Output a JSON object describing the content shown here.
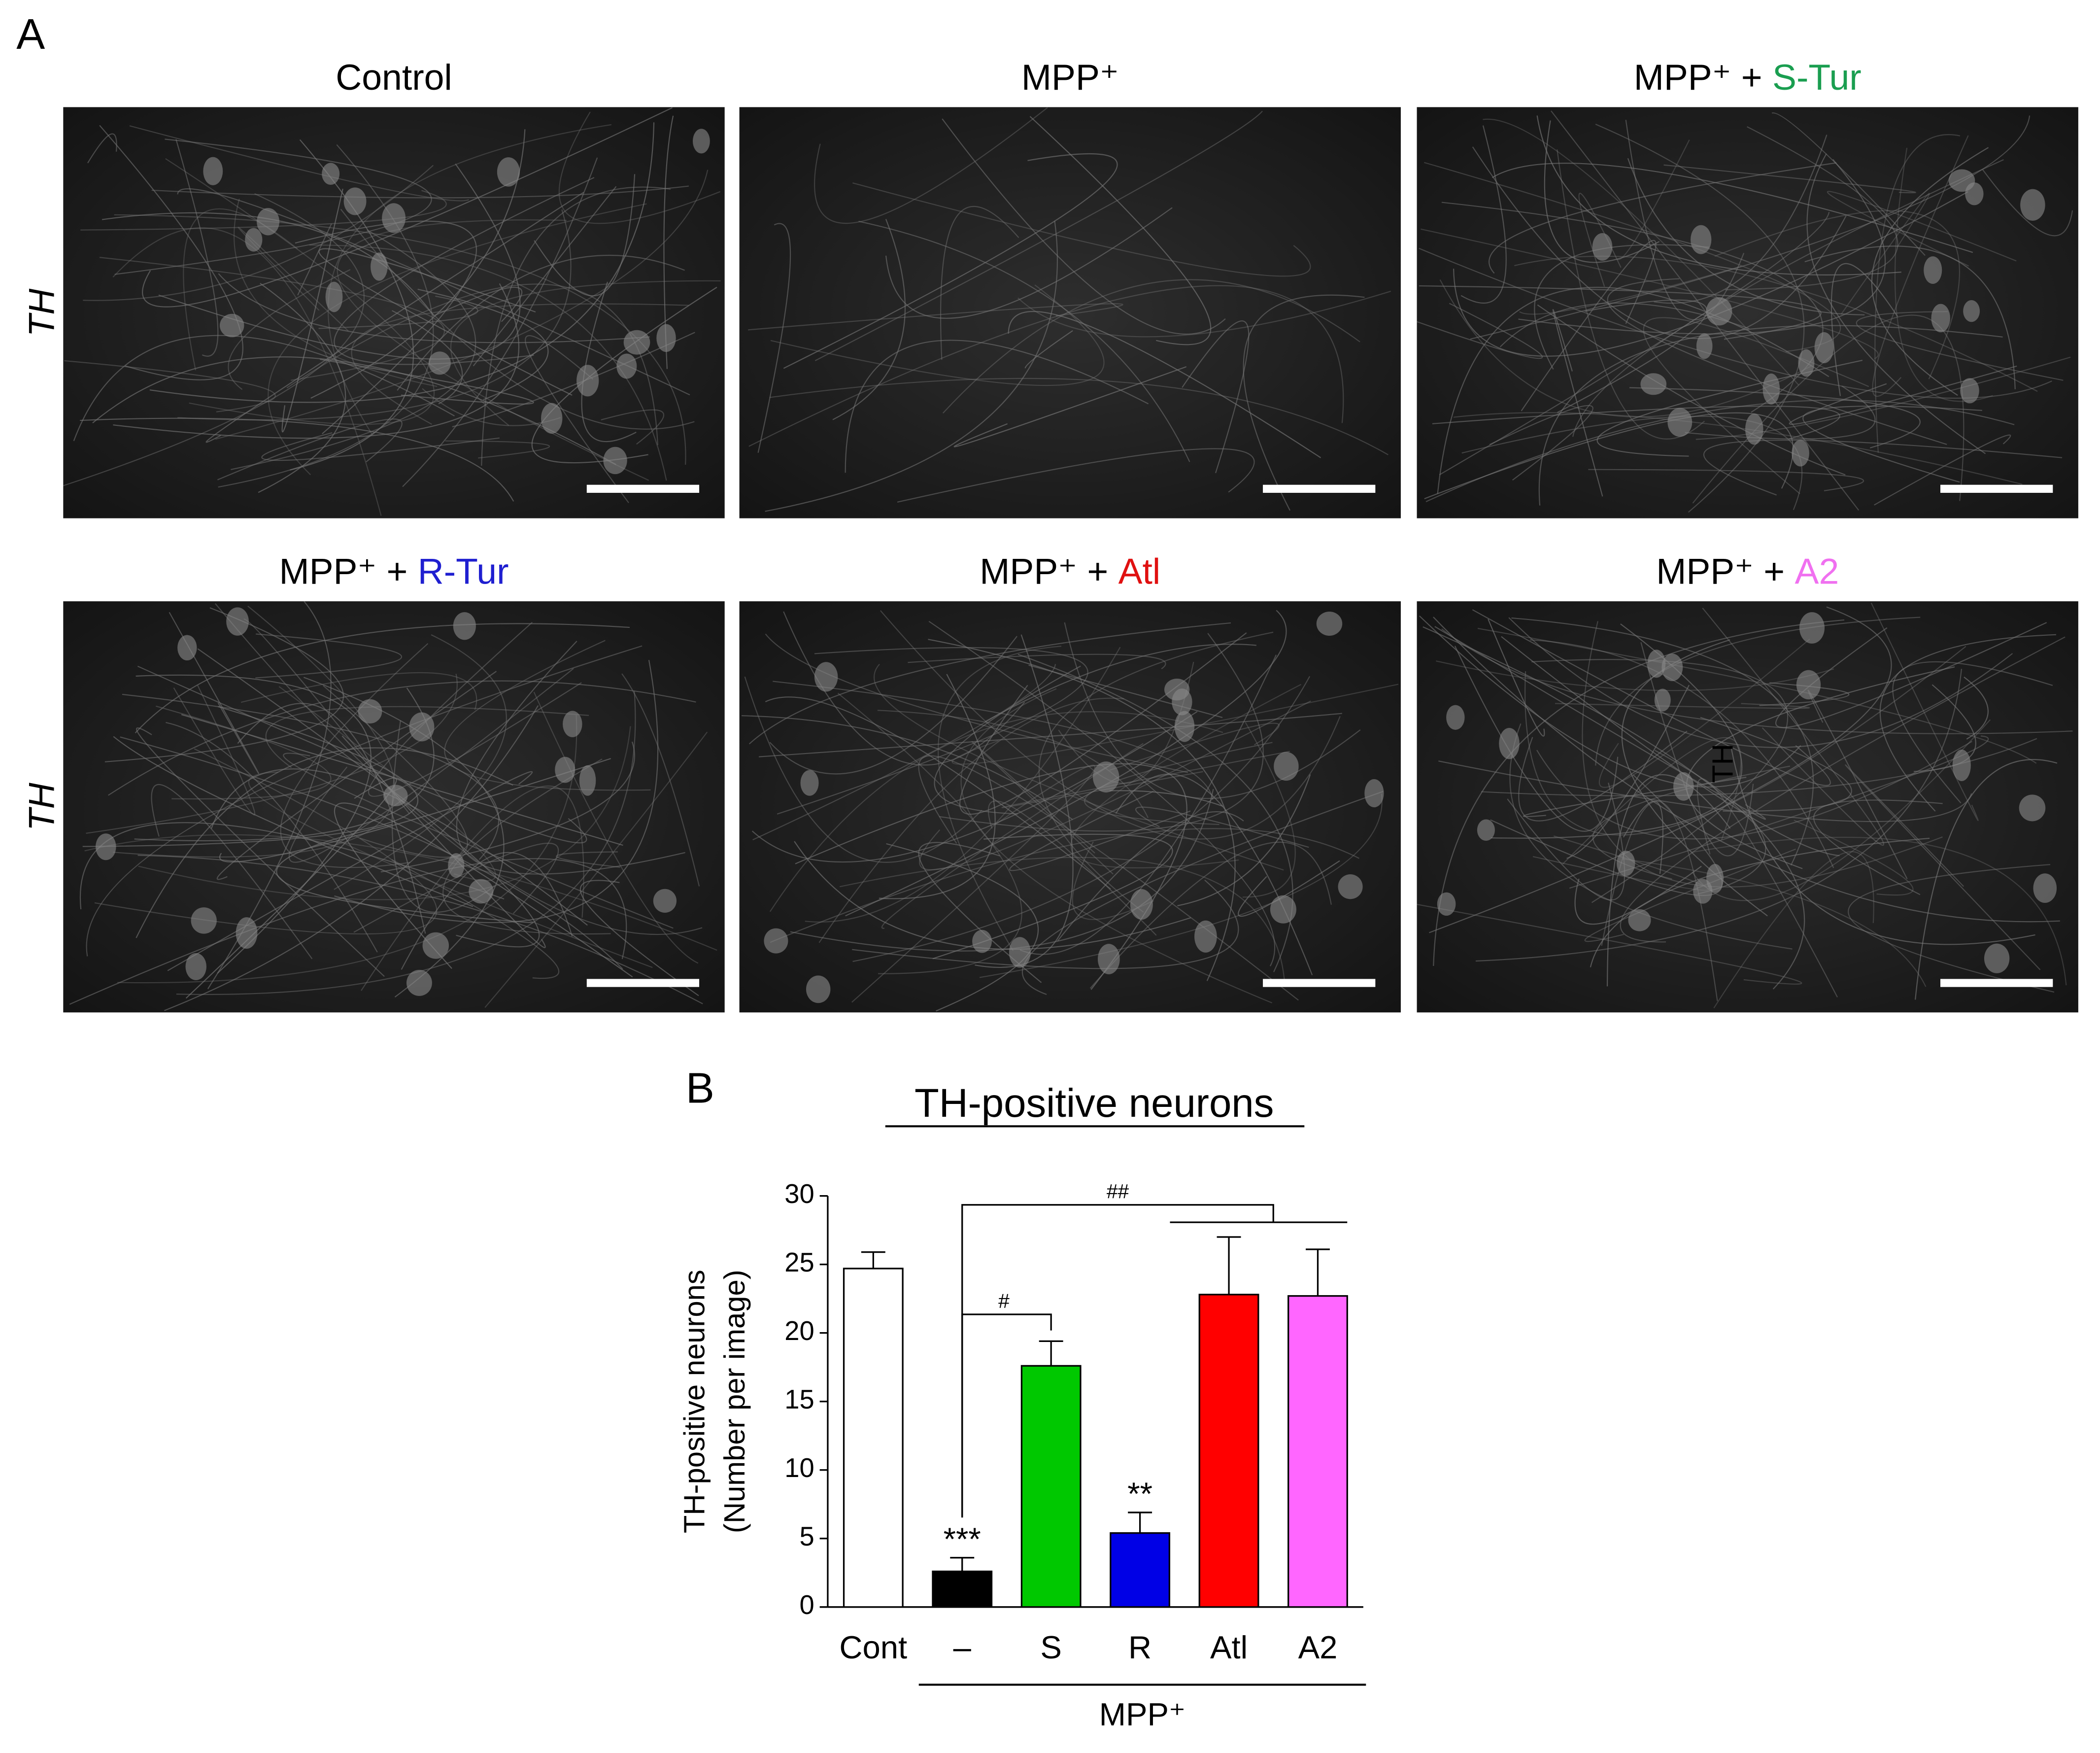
{
  "figure": {
    "label": "A",
    "row_labels": [
      "TH",
      "TH"
    ],
    "stray_label": "TH",
    "panels": [
      {
        "title": [
          {
            "text": "Control",
            "color": "#000000"
          }
        ]
      },
      {
        "title": [
          {
            "text": "MPP⁺",
            "color": "#000000"
          }
        ]
      },
      {
        "title": [
          {
            "text": "MPP⁺ + ",
            "color": "#000000"
          },
          {
            "text": "S-Tur",
            "color": "#1a9e50"
          }
        ]
      },
      {
        "title": [
          {
            "text": "MPP⁺ + ",
            "color": "#000000"
          },
          {
            "text": "R-Tur",
            "color": "#1f1fd0"
          }
        ]
      },
      {
        "title": [
          {
            "text": "MPP⁺ + ",
            "color": "#000000"
          },
          {
            "text": "Atl",
            "color": "#e01010"
          }
        ]
      },
      {
        "title": [
          {
            "text": "MPP⁺ + ",
            "color": "#000000"
          },
          {
            "text": "A2",
            "color": "#f070f0"
          }
        ]
      }
    ]
  },
  "chart_data": {
    "type": "bar",
    "panel_label": "B",
    "title": "TH-positive neurons",
    "y_label": [
      "TH-positive neurons",
      "(Number per image)"
    ],
    "categories": [
      "Cont",
      "–",
      "S",
      "R",
      "Atl",
      "A2"
    ],
    "group_label": "MPP⁺",
    "values": [
      24.7,
      2.6,
      17.6,
      5.4,
      22.8,
      22.7
    ],
    "errors": [
      1.2,
      1.0,
      1.8,
      1.5,
      4.2,
      3.4
    ],
    "colors": [
      "#ffffff",
      "#000000",
      "#00c800",
      "#0000e6",
      "#ff0000",
      "#ff66ff"
    ],
    "significance": [
      {
        "category": "–",
        "label": "***"
      },
      {
        "category": "R",
        "label": "**"
      }
    ],
    "brackets": [
      {
        "label": "#",
        "from": "–",
        "to": [
          "S"
        ]
      },
      {
        "label": "##",
        "from": "–",
        "to": [
          "Atl",
          "A2"
        ]
      }
    ],
    "ylim": [
      0,
      30
    ],
    "yticks": [
      0,
      5,
      10,
      15,
      20,
      25,
      30
    ]
  }
}
